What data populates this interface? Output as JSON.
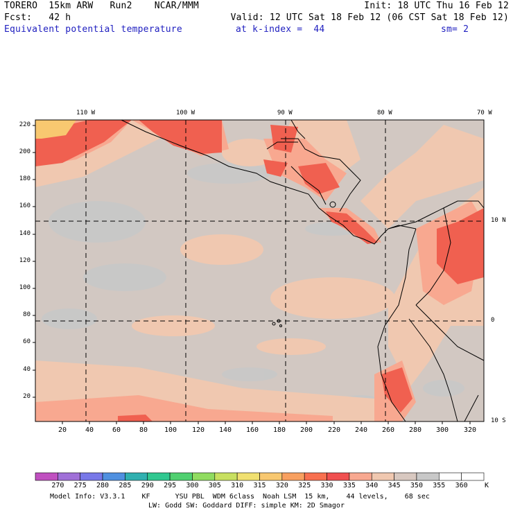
{
  "header": {
    "line1_left": "TORERO  15km ARW   Run2    NCAR/MMM",
    "line1_right": "Init: 18 UTC Thu 16 Feb 12",
    "line2_left": "Fcst:   42 h",
    "line2_right": "Valid: 12 UTC Sat 18 Feb 12 (06 CST Sat 18 Feb 12)",
    "line3_field": "Equivalent potential temperature",
    "line3_level": "at k-index =  44",
    "line3_smooth": "sm= 2"
  },
  "map": {
    "top_longitudes": [
      "110 W",
      "100 W",
      "90 W",
      "80 W",
      "70 W"
    ],
    "right_latitudes": [
      "10 N",
      "0",
      "10 S"
    ],
    "y_ticks": [
      "220",
      "200",
      "180",
      "160",
      "140",
      "120",
      "100",
      "80",
      "60",
      "40",
      "20"
    ],
    "x_ticks": [
      "20",
      "40",
      "60",
      "80",
      "100",
      "120",
      "140",
      "160",
      "180",
      "200",
      "220",
      "240",
      "260",
      "280",
      "300",
      "320"
    ]
  },
  "colorbar": {
    "labels": [
      "270",
      "275",
      "280",
      "285",
      "290",
      "295",
      "300",
      "305",
      "310",
      "315",
      "320",
      "325",
      "330",
      "335",
      "340",
      "345",
      "350",
      "355",
      "360"
    ],
    "unit": "K",
    "colors": [
      "#c050c0",
      "#a070d8",
      "#7878e8",
      "#5090e0",
      "#30b0b0",
      "#30c890",
      "#50d070",
      "#90dc60",
      "#c8e060",
      "#f0e070",
      "#f8c870",
      "#f8a060",
      "#f87050",
      "#f05050",
      "#f8a890",
      "#f0c8b0",
      "#d8c8c0",
      "#c8c8c8",
      "#ffffff",
      "#ffffff"
    ]
  },
  "footer": {
    "line1": "Model Info: V3.3.1    KF      YSU PBL  WDM 6class  Noah LSM  15 km,    44 levels,    68 sec",
    "line2": "LW: Godd SW: Goddard DIFF: simple KM: 2D Smagor"
  }
}
